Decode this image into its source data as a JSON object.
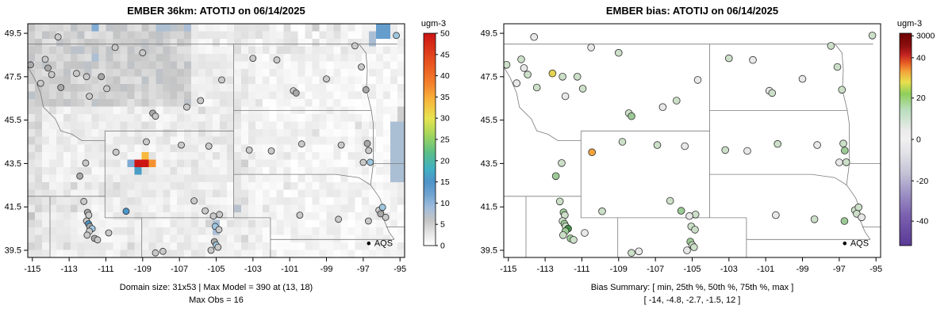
{
  "figure": {
    "bg": "#ffffff"
  },
  "axes": {
    "x_ticks": [
      "-115",
      "-113",
      "-111",
      "-109",
      "-107",
      "-105",
      "-103",
      "-101",
      "-99",
      "-97",
      "-95"
    ],
    "y_ticks": [
      "39.5",
      "41.5",
      "43.5",
      "45.5",
      "47.5",
      "49.5"
    ]
  },
  "panels": {
    "left": {
      "title": "EMBER 36km: ATOTIJ on 06/14/2025",
      "caption_line1": "Domain size: 31x53 | Max Model = 390 at (13, 18)",
      "caption_line2": "Max Obs = 16",
      "legend_label": "AQS",
      "colorbar": {
        "label": "ugm-3",
        "ticks": [
          {
            "label": "50",
            "f": 0.0
          },
          {
            "label": "45",
            "f": 0.1
          },
          {
            "label": "40",
            "f": 0.2
          },
          {
            "label": "35",
            "f": 0.3
          },
          {
            "label": "30",
            "f": 0.4
          },
          {
            "label": "25",
            "f": 0.5
          },
          {
            "label": "20",
            "f": 0.6
          },
          {
            "label": "15",
            "f": 0.7
          },
          {
            "label": "10",
            "f": 0.8
          },
          {
            "label": "5",
            "f": 0.9
          },
          {
            "label": "0",
            "f": 1.0
          }
        ],
        "gradient": [
          {
            "f": 0.0,
            "c": "#cc1414"
          },
          {
            "f": 0.14,
            "c": "#e8531f"
          },
          {
            "f": 0.24,
            "c": "#f4832c"
          },
          {
            "f": 0.32,
            "c": "#f7b93d"
          },
          {
            "f": 0.4,
            "c": "#e8e34f"
          },
          {
            "f": 0.48,
            "c": "#a2d65c"
          },
          {
            "f": 0.56,
            "c": "#5cbf86"
          },
          {
            "f": 0.64,
            "c": "#41b0c4"
          },
          {
            "f": 0.7,
            "c": "#4f93c8"
          },
          {
            "f": 0.76,
            "c": "#70a3d0"
          },
          {
            "f": 0.82,
            "c": "#9fbcdc"
          },
          {
            "f": 0.88,
            "c": "#c4c4c4"
          },
          {
            "f": 0.94,
            "c": "#e4e4e4"
          },
          {
            "f": 1.0,
            "c": "#ffffff"
          }
        ]
      }
    },
    "right": {
      "title": "EMBER bias: ATOTIJ on 06/14/2025",
      "caption_line1": "Bias Summary: [ min, 25th %, 50th %, 75th %, max ]",
      "caption_line2": "[ -14, -4.8, -2.7, -1.5, 12 ]",
      "legend_label": "AQS",
      "colorbar": {
        "label": "ugm-3",
        "ticks": [
          {
            "label": "3000",
            "f": 0.012
          },
          {
            "label": "40",
            "f": 0.115
          },
          {
            "label": "20",
            "f": 0.305
          },
          {
            "label": "0",
            "f": 0.5
          },
          {
            "label": "-20",
            "f": 0.695
          },
          {
            "label": "-40",
            "f": 0.885
          }
        ],
        "gradient": [
          {
            "f": 0.0,
            "c": "#6d0000"
          },
          {
            "f": 0.06,
            "c": "#8c0f0f"
          },
          {
            "f": 0.1,
            "c": "#c22121"
          },
          {
            "f": 0.14,
            "c": "#e85c24"
          },
          {
            "f": 0.18,
            "c": "#f2a43b"
          },
          {
            "f": 0.23,
            "c": "#e8e04e"
          },
          {
            "f": 0.285,
            "c": "#8fce5a"
          },
          {
            "f": 0.36,
            "c": "#b9debc"
          },
          {
            "f": 0.46,
            "c": "#ebebeb"
          },
          {
            "f": 0.5,
            "c": "#f0f0f0"
          },
          {
            "f": 0.56,
            "c": "#e3e3e8"
          },
          {
            "f": 0.66,
            "c": "#c4c2d6"
          },
          {
            "f": 0.76,
            "c": "#9b8fc4"
          },
          {
            "f": 0.86,
            "c": "#7a5fae"
          },
          {
            "f": 1.0,
            "c": "#5a3a96"
          }
        ]
      }
    }
  },
  "point_colors": {
    "left": {
      "g": "#c9c9c9",
      "g2": "#a8a8a8",
      "b1": "#9ec7e0",
      "b2": "#4b94c9",
      "t": "#41b0c4"
    },
    "right": {
      "w": "#e8e8e8",
      "lg": "#ccdfc8",
      "mg": "#9cca96",
      "dg": "#3f8c45",
      "y": "#e5d34f",
      "o": "#f0a33c"
    }
  },
  "stations": [
    [
      -113.6,
      49.33,
      "g",
      "w"
    ],
    [
      -115.1,
      48.05,
      "g2",
      "lg"
    ],
    [
      -114.3,
      48.3,
      "g",
      "lg"
    ],
    [
      -114.15,
      47.9,
      "g2",
      "w"
    ],
    [
      -113.95,
      47.6,
      "g",
      "lg"
    ],
    [
      -114.55,
      47.2,
      "g",
      "w"
    ],
    [
      -113.45,
      47.0,
      "g2",
      "lg"
    ],
    [
      -112.6,
      47.65,
      "g",
      "y"
    ],
    [
      -112.05,
      47.5,
      "g",
      "lg"
    ],
    [
      -111.25,
      47.5,
      "g2",
      "lg"
    ],
    [
      -111.9,
      46.6,
      "g",
      "w"
    ],
    [
      -110.95,
      46.95,
      "g",
      "lg"
    ],
    [
      -110.5,
      48.85,
      "g",
      "w"
    ],
    [
      -109.0,
      48.6,
      "g",
      "lg"
    ],
    [
      -108.45,
      45.82,
      "g2",
      "lg"
    ],
    [
      -108.3,
      45.68,
      "g",
      "mg"
    ],
    [
      -106.6,
      46.1,
      "g",
      "w"
    ],
    [
      -105.85,
      46.4,
      "g",
      "lg"
    ],
    [
      -104.7,
      47.35,
      "g",
      "w"
    ],
    [
      -103.0,
      48.35,
      "g",
      "lg"
    ],
    [
      -101.7,
      48.27,
      "g",
      "w"
    ],
    [
      -97.45,
      48.92,
      "g",
      "lg"
    ],
    [
      -97.1,
      47.95,
      "g",
      "lg"
    ],
    [
      -96.85,
      46.9,
      "g2",
      "lg"
    ],
    [
      -100.8,
      46.85,
      "g",
      "w"
    ],
    [
      -100.65,
      46.75,
      "g2",
      "lg"
    ],
    [
      -99.0,
      47.4,
      "g",
      "w"
    ],
    [
      -95.2,
      49.4,
      "b1",
      "lg"
    ],
    [
      -103.2,
      44.12,
      "g",
      "lg"
    ],
    [
      -102.0,
      44.08,
      "g",
      "w"
    ],
    [
      -100.35,
      44.4,
      "g",
      "lg"
    ],
    [
      -98.2,
      44.35,
      "g",
      "w"
    ],
    [
      -96.78,
      44.42,
      "g2",
      "lg"
    ],
    [
      -96.7,
      44.1,
      "g",
      "mg"
    ],
    [
      -96.62,
      43.56,
      "b1",
      "lg"
    ],
    [
      -97.0,
      43.55,
      "g",
      "w"
    ],
    [
      -96.15,
      41.35,
      "g",
      "lg"
    ],
    [
      -95.95,
      41.48,
      "b1",
      "lg"
    ],
    [
      -96.05,
      41.18,
      "g2",
      "lg"
    ],
    [
      -96.72,
      40.85,
      "g",
      "mg"
    ],
    [
      -95.78,
      41.02,
      "g",
      "w"
    ],
    [
      -98.35,
      40.93,
      "g",
      "lg"
    ],
    [
      -100.45,
      41.12,
      "g",
      "w"
    ],
    [
      -110.45,
      44.02,
      "g",
      "o"
    ],
    [
      -108.8,
      44.5,
      "g",
      "lg"
    ],
    [
      -106.9,
      44.35,
      "g",
      "lg"
    ],
    [
      -105.4,
      44.3,
      "g",
      "w"
    ],
    [
      -106.2,
      41.78,
      "g",
      "lg"
    ],
    [
      -105.6,
      41.32,
      "g",
      "mg"
    ],
    [
      -109.9,
      41.3,
      "b2",
      "lg"
    ],
    [
      -104.82,
      41.15,
      "g",
      "lg"
    ],
    [
      -105.15,
      41.08,
      "g",
      "w"
    ],
    [
      -112.2,
      41.75,
      "g",
      "lg"
    ],
    [
      -112.0,
      41.25,
      "g2",
      "mg"
    ],
    [
      -111.93,
      41.12,
      "g",
      "lg"
    ],
    [
      -112.05,
      40.85,
      "g",
      "lg"
    ],
    [
      -111.95,
      40.72,
      "b2",
      "mg"
    ],
    [
      -111.88,
      40.6,
      "g2",
      "lg"
    ],
    [
      -111.75,
      40.5,
      "b1",
      "dg"
    ],
    [
      -111.9,
      40.38,
      "g",
      "mg"
    ],
    [
      -112.02,
      40.2,
      "g",
      "lg"
    ],
    [
      -111.62,
      40.05,
      "g2",
      "mg"
    ],
    [
      -111.45,
      39.98,
      "g",
      "lg"
    ],
    [
      -110.85,
      40.3,
      "g",
      "w"
    ],
    [
      -112.1,
      43.52,
      "g",
      "lg"
    ],
    [
      -112.42,
      42.92,
      "g2",
      "mg"
    ],
    [
      -105.05,
      40.6,
      "b1",
      "lg"
    ],
    [
      -104.85,
      40.45,
      "g",
      "lg"
    ],
    [
      -105.1,
      39.9,
      "g2",
      "mg"
    ],
    [
      -105.0,
      39.74,
      "b1",
      "lg"
    ],
    [
      -104.9,
      39.64,
      "g",
      "lg"
    ],
    [
      -105.28,
      39.5,
      "g",
      "w"
    ],
    [
      -108.3,
      39.38,
      "g",
      "lg"
    ],
    [
      -107.9,
      39.45,
      "g",
      "w"
    ]
  ],
  "chart_data": [
    {
      "type": "heatmap",
      "title": "EMBER 36km: ATOTIJ on 06/14/2025",
      "xlabel": "",
      "ylabel": "",
      "x_range": [
        -115.25,
        -94.75
      ],
      "y_range": [
        39.17,
        49.94
      ],
      "x_ticks": [
        -115,
        -113,
        -111,
        -109,
        -107,
        -105,
        -103,
        -101,
        -99,
        -97,
        -95
      ],
      "y_ticks": [
        39.5,
        41.5,
        43.5,
        45.5,
        47.5,
        49.5
      ],
      "colorbar": {
        "label": "ugm-3",
        "min": 0,
        "max": 50,
        "tick_step": 5
      },
      "grid": {
        "rows": 31,
        "cols": 53,
        "note": "model field approximate: mostly 0-5 ugm-3 (white/light gray mottle); darker gray over NW Montana-Idaho; hotspot max 390 (clipped at 50) near lon -109, lat 43.5"
      },
      "max_model": {
        "value": 390,
        "cell": "(13, 18)"
      },
      "max_obs": 16,
      "legend": "AQS (obs points)",
      "features": [
        {
          "lon0": -109.55,
          "lat0": 43.28,
          "lon1": -108.78,
          "lat1": 43.64,
          "v": 50
        },
        {
          "lon0": -108.78,
          "lat0": 43.28,
          "lon1": -108.4,
          "lat1": 43.64,
          "v": 37
        },
        {
          "lon0": -109.16,
          "lat0": 43.64,
          "lon1": -108.78,
          "lat1": 43.97,
          "v": 34
        },
        {
          "lon0": -109.93,
          "lat0": 43.28,
          "lon1": -109.55,
          "lat1": 43.64,
          "v": 11
        },
        {
          "lon0": -109.55,
          "lat0": 42.94,
          "lon1": -109.16,
          "lat1": 43.28,
          "v": 16
        },
        {
          "lon0": -96.35,
          "lat0": 49.2,
          "lon1": -95.55,
          "lat1": 49.94,
          "v": 13
        },
        {
          "lon0": -96.75,
          "lat0": 49.0,
          "lon1": -96.35,
          "lat1": 49.5,
          "v": 8
        },
        {
          "lon0": -111.7,
          "lat0": 49.45,
          "lon1": -111.3,
          "lat1": 49.94,
          "v": 11
        },
        {
          "lon0": -95.35,
          "lat0": 42.8,
          "lon1": -94.75,
          "lat1": 45.4,
          "v": 8
        },
        {
          "lon0": -95.15,
          "lat0": 45.4,
          "lon1": -94.75,
          "lat1": 46.2,
          "v": 5
        },
        {
          "lon0": -105.35,
          "lat0": 40.05,
          "lon1": -104.9,
          "lat1": 40.75,
          "v": 8
        },
        {
          "lon0": -104.1,
          "lat0": 41.15,
          "lon1": -103.7,
          "lat1": 41.5,
          "v": 7
        }
      ]
    },
    {
      "type": "scatter",
      "title": "EMBER bias: ATOTIJ on 06/14/2025",
      "x_range": [
        -115.25,
        -94.75
      ],
      "y_range": [
        39.17,
        49.94
      ],
      "colorbar": {
        "label": "ugm-3",
        "ticks": [
          "3000",
          "40",
          "20",
          "0",
          "-20",
          "-40"
        ]
      },
      "bias_summary": {
        "stats": [
          "min",
          "25th %",
          "50th %",
          "75th %",
          "max"
        ],
        "values": [
          -14,
          -4.8,
          -2.7,
          -1.5,
          12
        ]
      },
      "points_note": "see stations array: [lon, lat, model_color_key, bias_color_key]",
      "legend": "AQS (obs points)"
    }
  ]
}
